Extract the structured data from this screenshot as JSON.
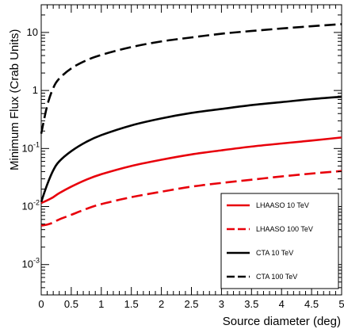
{
  "chart_data": {
    "type": "line",
    "title": "",
    "xlabel": "Source diameter (deg)",
    "ylabel": "Minimum Flux (Crab Units)",
    "xlim": [
      0,
      5
    ],
    "ylim": [
      0.0003,
      30
    ],
    "yscale": "log",
    "grid": false,
    "legend_position": "bottom-right",
    "x_ticks": [
      "0",
      "0.5",
      "1",
      "1.5",
      "2",
      "2.5",
      "3",
      "3.5",
      "4",
      "4.5",
      "5"
    ],
    "y_tick_values": [
      0.001,
      0.01,
      0.1,
      1,
      10
    ],
    "y_ticks": [
      {
        "base": "10",
        "exp": "-3"
      },
      {
        "base": "10",
        "exp": "-2"
      },
      {
        "base": "10",
        "exp": "-1"
      },
      {
        "base": "1",
        "exp": ""
      },
      {
        "base": "10",
        "exp": ""
      }
    ],
    "x": [
      0,
      0.1,
      0.2,
      0.3,
      0.5,
      0.75,
      1,
      1.5,
      2,
      2.5,
      3,
      3.5,
      4,
      4.5,
      5
    ],
    "series": [
      {
        "name": "LHAASO 10 TeV",
        "color": "#e8000b",
        "dash": "solid",
        "values": [
          0.0115,
          0.0128,
          0.0145,
          0.017,
          0.022,
          0.029,
          0.036,
          0.05,
          0.064,
          0.079,
          0.093,
          0.108,
          0.122,
          0.137,
          0.155
        ]
      },
      {
        "name": "LHAASO 100 TeV",
        "color": "#e8000b",
        "dash": "dashed",
        "values": [
          0.0047,
          0.0049,
          0.0053,
          0.006,
          0.0072,
          0.0091,
          0.011,
          0.0145,
          0.018,
          0.022,
          0.0255,
          0.029,
          0.033,
          0.037,
          0.041
        ]
      },
      {
        "name": "CTA 10 TeV",
        "color": "#000000",
        "dash": "solid",
        "values": [
          0.012,
          0.024,
          0.042,
          0.06,
          0.09,
          0.13,
          0.17,
          0.25,
          0.33,
          0.41,
          0.48,
          0.56,
          0.63,
          0.71,
          0.78
        ]
      },
      {
        "name": "CTA 100 TeV",
        "color": "#000000",
        "dash": "dashed",
        "values": [
          0.18,
          0.55,
          1.1,
          1.6,
          2.4,
          3.3,
          4.1,
          5.6,
          7.0,
          8.2,
          9.5,
          10.6,
          11.7,
          12.8,
          13.9
        ]
      }
    ]
  }
}
